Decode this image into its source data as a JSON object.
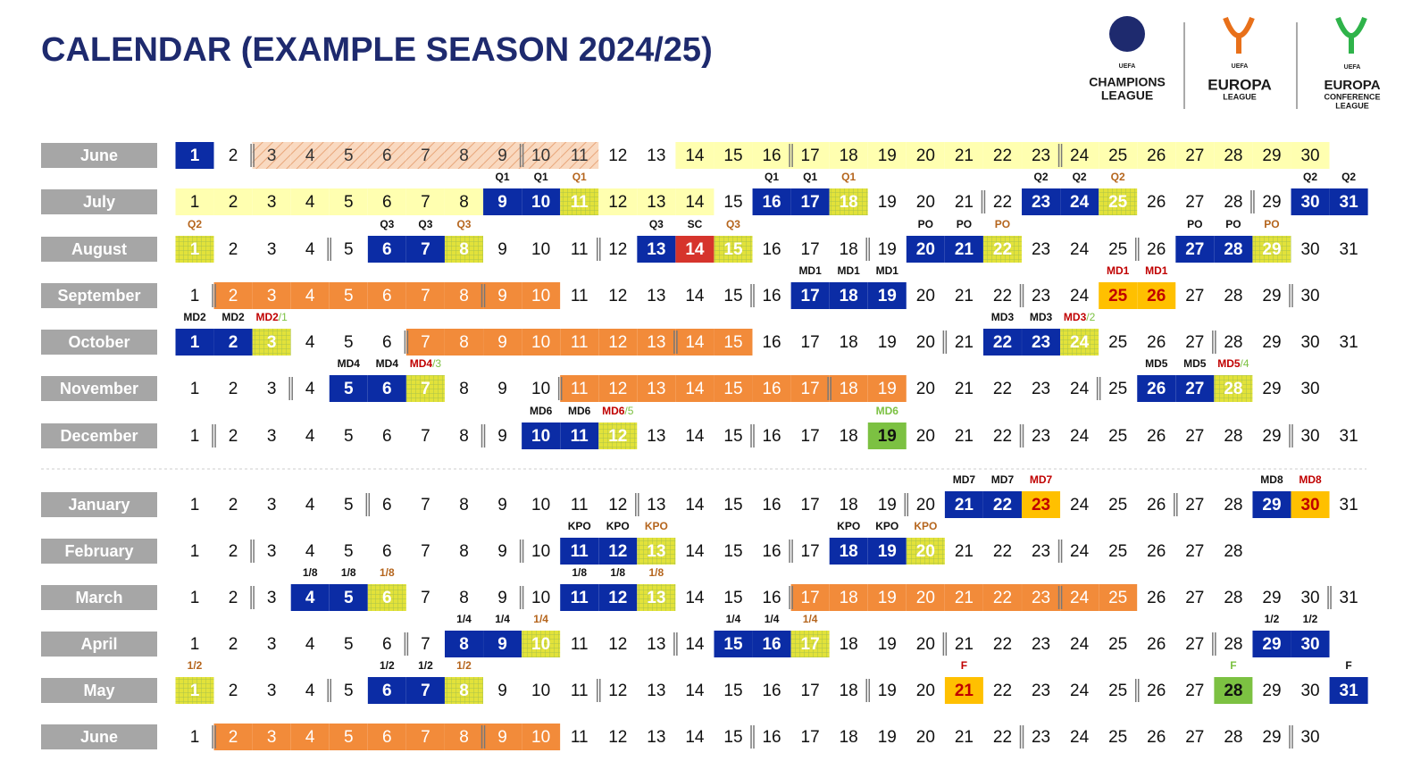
{
  "header": {
    "title": "CALENDAR (EXAMPLE SEASON 2024/25)"
  },
  "logos": [
    {
      "small": "UEFA",
      "lines": [
        "CHAMPIONS",
        "LEAGUE"
      ]
    },
    {
      "small": "UEFA",
      "lines": [
        "EUROPA",
        "LEAGUE"
      ]
    },
    {
      "small": "UEFA",
      "lines": [
        "EUROPA",
        "CONFERENCE",
        "LEAGUE"
      ]
    }
  ],
  "months": [
    {
      "name": "June",
      "days": [
        1,
        2,
        3,
        4,
        5,
        6,
        7,
        8,
        9,
        10,
        11,
        12,
        13,
        14,
        15,
        16,
        17,
        18,
        19,
        20,
        21,
        22,
        23,
        24,
        25,
        26,
        27,
        28,
        29,
        30
      ],
      "cells": "B.HHHHHHHHH..LLLLLLLLLLLLLLLLL",
      "breaks": [
        3,
        10,
        17,
        24
      ],
      "labels": {}
    },
    {
      "name": "July",
      "days": [
        1,
        2,
        3,
        4,
        5,
        6,
        7,
        8,
        9,
        10,
        11,
        12,
        13,
        14,
        15,
        16,
        17,
        18,
        19,
        20,
        21,
        22,
        23,
        24,
        25,
        26,
        27,
        28,
        29,
        30,
        31
      ],
      "cells": "LLLLLLLLBBYLLL.BBY....BBY....BB",
      "breaks": [
        22,
        29
      ],
      "labels": {
        "9": "Q1",
        "10": "Q1",
        "11": "Q1",
        "16": "Q1",
        "17": "Q1",
        "18": "Q1",
        "23": "Q2",
        "24": "Q2",
        "25": "Q2",
        "30": "Q2",
        "31": "Q2"
      }
    },
    {
      "name": "August",
      "days": [
        1,
        2,
        3,
        4,
        5,
        6,
        7,
        8,
        9,
        10,
        11,
        12,
        13,
        14,
        15,
        16,
        17,
        18,
        19,
        20,
        21,
        22,
        23,
        24,
        25,
        26,
        27,
        28,
        29,
        30,
        31
      ],
      "cells": "Y....BBY....BRY....BBY....BBY..",
      "breaks": [
        5,
        12,
        19,
        26
      ],
      "labels": {
        "1": "Q2",
        "6": "Q3",
        "7": "Q3",
        "8": "Q3",
        "13": "Q3",
        "14": "SC",
        "15": "Q3",
        "20": "PO",
        "21": "PO",
        "22": "PO",
        "27": "PO",
        "28": "PO",
        "29": "PO"
      }
    },
    {
      "name": "September",
      "days": [
        1,
        2,
        3,
        4,
        5,
        6,
        7,
        8,
        9,
        10,
        11,
        12,
        13,
        14,
        15,
        16,
        17,
        18,
        19,
        20,
        21,
        22,
        23,
        24,
        25,
        26,
        27,
        28,
        29,
        30
      ],
      "cells": ".OOOOOOOOO......BBB.....GG....",
      "breaks": [
        2,
        9,
        16,
        23,
        30
      ],
      "labels": {
        "17": "MD1",
        "18": "MD1",
        "19": "MD1",
        "25": "MD1",
        "26": "MD1"
      }
    },
    {
      "name": "October",
      "days": [
        1,
        2,
        3,
        4,
        5,
        6,
        7,
        8,
        9,
        10,
        11,
        12,
        13,
        14,
        15,
        16,
        17,
        18,
        19,
        20,
        21,
        22,
        23,
        24,
        25,
        26,
        27,
        28,
        29,
        30,
        31
      ],
      "cells": "BBY...OOOOOOOOO......BBY.......",
      "breaks": [
        7,
        14,
        21,
        28
      ],
      "labels": {
        "1": "MD2",
        "2": "MD2",
        "3": [
          "MD2",
          "/1"
        ],
        "22": "MD3",
        "23": "MD3",
        "24": [
          "MD3",
          "/2"
        ]
      }
    },
    {
      "name": "November",
      "days": [
        1,
        2,
        3,
        4,
        5,
        6,
        7,
        8,
        9,
        10,
        11,
        12,
        13,
        14,
        15,
        16,
        17,
        18,
        19,
        20,
        21,
        22,
        23,
        24,
        25,
        26,
        27,
        28,
        29,
        30
      ],
      "cells": "....BBY...OOOOOOOOO......BBY..",
      "breaks": [
        4,
        11,
        18,
        25
      ],
      "labels": {
        "5": "MD4",
        "6": "MD4",
        "7": [
          "MD4",
          "/3"
        ],
        "26": "MD5",
        "27": "MD5",
        "28": [
          "MD5",
          "/4"
        ]
      }
    },
    {
      "name": "December",
      "days": [
        1,
        2,
        3,
        4,
        5,
        6,
        7,
        8,
        9,
        10,
        11,
        12,
        13,
        14,
        15,
        16,
        17,
        18,
        19,
        20,
        21,
        22,
        23,
        24,
        25,
        26,
        27,
        28,
        29,
        30,
        31
      ],
      "cells": ".........BBY......V............",
      "breaks": [
        2,
        9,
        16,
        23,
        30
      ],
      "labels": {
        "10": "MD6",
        "11": "MD6",
        "12": [
          "MD6",
          "/5"
        ],
        "19": "MD6"
      }
    },
    {
      "name": "January",
      "days": [
        1,
        2,
        3,
        4,
        5,
        6,
        7,
        8,
        9,
        10,
        11,
        12,
        13,
        14,
        15,
        16,
        17,
        18,
        19,
        20,
        21,
        22,
        23,
        24,
        25,
        26,
        27,
        28,
        29,
        30,
        31
      ],
      "cells": "....................BBG.....BG.",
      "breaks": [
        6,
        13,
        20,
        27
      ],
      "labels": {
        "21": "MD7",
        "22": "MD7",
        "23": "MD7",
        "29": "MD8",
        "30": "MD8"
      }
    },
    {
      "name": "February",
      "days": [
        1,
        2,
        3,
        4,
        5,
        6,
        7,
        8,
        9,
        10,
        11,
        12,
        13,
        14,
        15,
        16,
        17,
        18,
        19,
        20,
        21,
        22,
        23,
        24,
        25,
        26,
        27,
        28
      ],
      "cells": "..........BBY....BBY........",
      "breaks": [
        3,
        10,
        17,
        24
      ],
      "labels": {
        "11": "KPO",
        "12": "KPO",
        "13": "KPO",
        "18": "KPO",
        "19": "KPO",
        "20": "KPO"
      }
    },
    {
      "name": "March",
      "days": [
        1,
        2,
        3,
        4,
        5,
        6,
        7,
        8,
        9,
        10,
        11,
        12,
        13,
        14,
        15,
        16,
        17,
        18,
        19,
        20,
        21,
        22,
        23,
        24,
        25,
        26,
        27,
        28,
        29,
        30,
        31
      ],
      "cells": "...BBY....BBY...OOOOOOOOO......",
      "breaks": [
        3,
        10,
        17,
        24,
        31
      ],
      "labels": {
        "4": "1/8",
        "5": "1/8",
        "6": "1/8",
        "11": "1/8",
        "12": "1/8",
        "13": "1/8"
      }
    },
    {
      "name": "April",
      "days": [
        1,
        2,
        3,
        4,
        5,
        6,
        7,
        8,
        9,
        10,
        11,
        12,
        13,
        14,
        15,
        16,
        17,
        18,
        19,
        20,
        21,
        22,
        23,
        24,
        25,
        26,
        27,
        28,
        29,
        30
      ],
      "cells": ".......BBY....BBY...........BB",
      "breaks": [
        7,
        14,
        21,
        28
      ],
      "labels": {
        "8": "1/4",
        "9": "1/4",
        "10": "1/4",
        "15": "1/4",
        "16": "1/4",
        "17": "1/4",
        "29": "1/2",
        "30": "1/2"
      }
    },
    {
      "name": "May",
      "days": [
        1,
        2,
        3,
        4,
        5,
        6,
        7,
        8,
        9,
        10,
        11,
        12,
        13,
        14,
        15,
        16,
        17,
        18,
        19,
        20,
        21,
        22,
        23,
        24,
        25,
        26,
        27,
        28,
        29,
        30,
        31
      ],
      "cells": "Y....BBY............G......V..B",
      "breaks": [
        5,
        12,
        19,
        26
      ],
      "labels": {
        "1": "1/2",
        "6": "1/2",
        "7": "1/2",
        "8": "1/2",
        "21": "F",
        "28": "F",
        "31": "F"
      }
    },
    {
      "name": "June",
      "days": [
        1,
        2,
        3,
        4,
        5,
        6,
        7,
        8,
        9,
        10,
        11,
        12,
        13,
        14,
        15,
        16,
        17,
        18,
        19,
        20,
        21,
        22,
        23,
        24,
        25,
        26,
        27,
        28,
        29,
        30
      ],
      "cells": ".OOOOOOOOO....................",
      "breaks": [
        2,
        9,
        16,
        23,
        30
      ],
      "labels": {}
    }
  ]
}
